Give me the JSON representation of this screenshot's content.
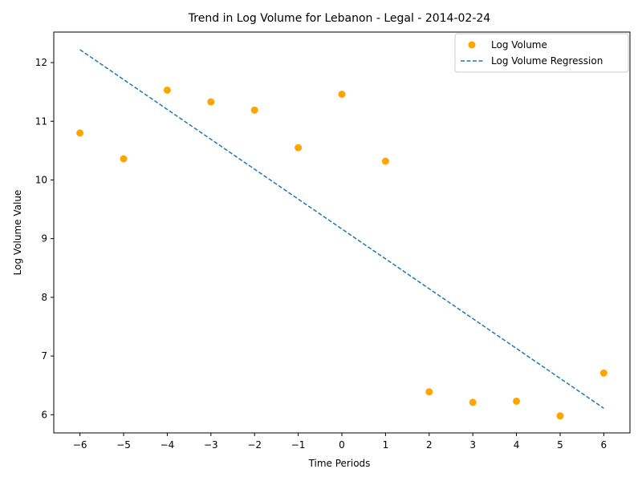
{
  "chart_data": {
    "type": "scatter",
    "title": "Trend in Log Volume for Lebanon - Legal - 2014-02-24",
    "xlabel": "Time Periods",
    "ylabel": "Log Volume Value",
    "xlim": [
      -6.6,
      6.6
    ],
    "ylim": [
      5.69,
      12.52
    ],
    "x_ticks": [
      -6,
      -5,
      -4,
      -3,
      -2,
      -1,
      0,
      1,
      2,
      3,
      4,
      5,
      6
    ],
    "x_tick_labels": [
      "−6",
      "−5",
      "−4",
      "−3",
      "−2",
      "−1",
      "0",
      "1",
      "2",
      "3",
      "4",
      "5",
      "6"
    ],
    "y_ticks": [
      6,
      7,
      8,
      9,
      10,
      11,
      12
    ],
    "y_tick_labels": [
      "6",
      "7",
      "8",
      "9",
      "10",
      "11",
      "12"
    ],
    "grid": false,
    "legend_position": "top-right",
    "series": [
      {
        "name": "Log Volume",
        "kind": "scatter",
        "color": "#ffa500",
        "x": [
          -6,
          -5,
          -4,
          -3,
          -2,
          -1,
          0,
          1,
          2,
          3,
          4,
          5,
          6
        ],
        "y": [
          10.8,
          10.36,
          11.53,
          11.33,
          11.19,
          10.55,
          11.46,
          10.32,
          6.39,
          6.21,
          6.23,
          5.98,
          6.71
        ]
      },
      {
        "name": "Log Volume Regression",
        "kind": "line",
        "style": "dashed",
        "color": "#1f77b4",
        "x": [
          -6,
          6
        ],
        "y": [
          12.22,
          6.11
        ]
      }
    ]
  }
}
